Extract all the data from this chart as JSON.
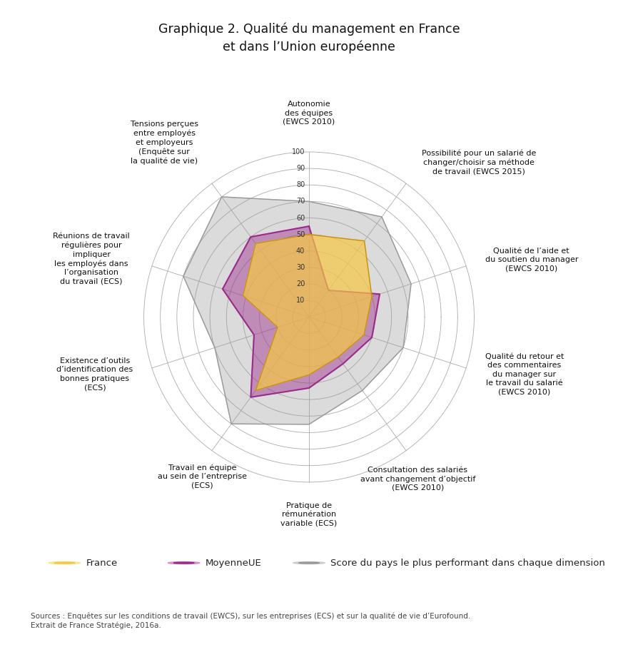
{
  "title_line1": "Graphique 2. Qualité du management en France",
  "title_line2": "et dans l’Union européenne",
  "categories": [
    "Autonomie\ndes équipes\n(EWCS 2010)",
    "Possibilité pour un salarié de\nchanger/choisir sa méthode\nde travail (EWCS 2015)",
    "Qualité de l’aide et\ndu soutien du manager\n(EWCS 2010)",
    "Qualité du retour et\ndes commentaires\ndu manager sur\nle travail du salarié\n(EWCS 2010)",
    "Consultation des salariés\navant changement d’objectif\n(EWCS 2010)",
    "Pratique de\nrémunération\nvariable (ECS)",
    "Travail en équipe\nau sein de l’entreprise\n(ECS)",
    "Existence d’outils\nd’identification des\nbonnes pratiques\n(ECS)",
    "Réunions de travail\nrégulières pour\nimpliquer\nles employés dans\nl’organisation\ndu travail (ECS)",
    "Tensions perçues\nentre employés\net employeurs\n(Enquête sur\nla qualité de vie)"
  ],
  "france": [
    50,
    57,
    40,
    35,
    30,
    35,
    55,
    20,
    42,
    55
  ],
  "moyenneUE": [
    55,
    20,
    45,
    40,
    35,
    43,
    60,
    35,
    55,
    60
  ],
  "best": [
    70,
    75,
    65,
    60,
    55,
    65,
    80,
    60,
    80,
    90
  ],
  "france_color": "#F5C842",
  "france_halo": "#F9E882",
  "moyenneUE_color": "#9B2C8C",
  "moyenneUE_halo": "#D590C8",
  "best_color": "#999999",
  "best_halo": "#cccccc",
  "grid_color": "#aaaaaa",
  "ring_values": [
    10,
    20,
    30,
    40,
    50,
    60,
    70,
    80,
    90,
    100
  ],
  "legend_france": "France",
  "legend_moyenneUE": "MoyenneUE",
  "legend_best": "Score du pays le plus performant dans chaque dimension",
  "source_text": "Sources : Enquêtes sur les conditions de travail (EWCS), sur les entreprises (ECS) et sur la qualité de vie d’Eurofound.\nExtrait de France Stratégie, 2016a."
}
